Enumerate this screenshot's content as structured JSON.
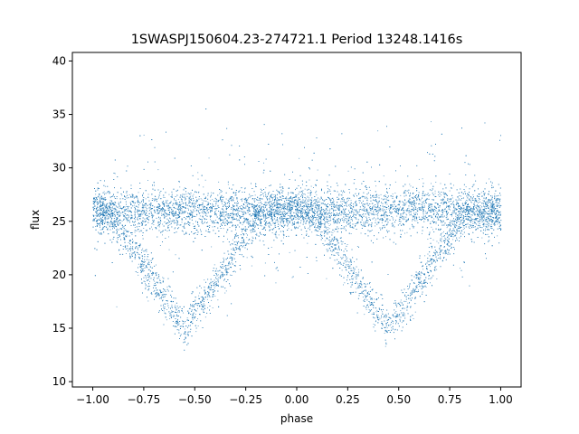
{
  "chart_data": {
    "type": "scatter",
    "title": "1SWASPJ150604.23-274721.1 Period 13248.1416s",
    "xlabel": "phase",
    "ylabel": "flux",
    "xlim": [
      -1.1,
      1.1
    ],
    "ylim": [
      9.5,
      40.8
    ],
    "x_ticks": [
      -1.0,
      -0.75,
      -0.5,
      -0.25,
      0.0,
      0.25,
      0.5,
      0.75,
      1.0
    ],
    "x_tick_labels": [
      "−1.00",
      "−0.75",
      "−0.50",
      "−0.25",
      "0.00",
      "0.25",
      "0.50",
      "0.75",
      "1.00"
    ],
    "y_ticks": [
      10,
      15,
      20,
      25,
      30,
      35,
      40
    ],
    "y_tick_labels": [
      "10",
      "15",
      "20",
      "25",
      "30",
      "35",
      "40"
    ],
    "grid": false,
    "marker_color": "#1f77b4",
    "series": [
      {
        "description_points": "dense phase-folded light curve; baseline flux ~26 across all phases, eclipse dips reaching ~15 at phase -0.55 and 0.45",
        "phase_range": [
          -1.0,
          1.0
        ],
        "baseline_flux": 26.0,
        "baseline_spread": 1.0,
        "eclipse_phases": [
          -0.55,
          0.45
        ],
        "eclipse_min_flux": 15.0,
        "eclipse_half_width": 0.38,
        "point_count": 14000
      }
    ]
  }
}
